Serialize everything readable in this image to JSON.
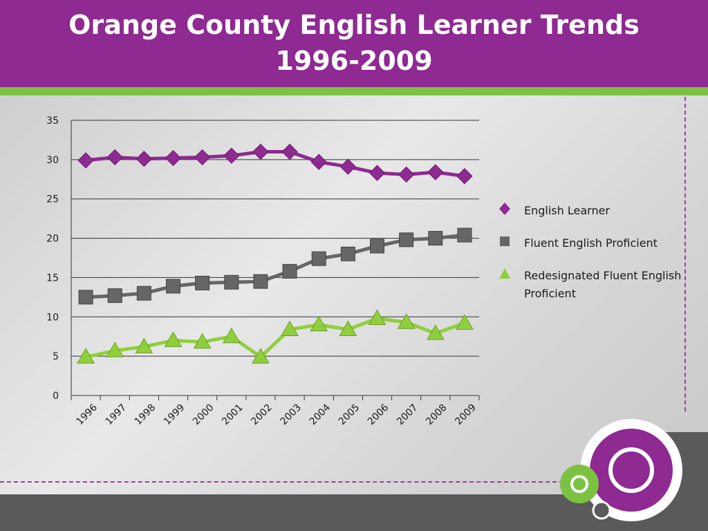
{
  "header": {
    "title": "Orange County English Learner Trends\n1996-2009"
  },
  "colors": {
    "header_bg": "#8e2a91",
    "accent_green": "#7cc242",
    "footer": "#5a5a5a",
    "series_english_learner": "#8e2a91",
    "series_fluent": "#666666",
    "series_redesignated": "#8fcf3c"
  },
  "chart_data": {
    "type": "line",
    "title": "Orange County English Learner Trends 1996-2009",
    "xlabel": "",
    "ylabel": "",
    "categories": [
      "1996",
      "1997",
      "1998",
      "1999",
      "2000",
      "2001",
      "2002",
      "2003",
      "2004",
      "2005",
      "2006",
      "2007",
      "2008",
      "2009"
    ],
    "y_ticks": [
      "0",
      "5",
      "10",
      "15",
      "20",
      "25",
      "30",
      "35"
    ],
    "ylim": [
      0,
      35
    ],
    "grid": "horizontal",
    "legend_position": "right",
    "series": [
      {
        "name": "English Learner",
        "marker": "diamond",
        "values": [
          29.9,
          30.3,
          30.1,
          30.2,
          30.3,
          30.5,
          31.0,
          31.0,
          29.7,
          29.1,
          28.3,
          28.1,
          28.4,
          27.9
        ]
      },
      {
        "name": "Fluent English Proficient",
        "marker": "square",
        "values": [
          12.5,
          12.7,
          13.0,
          13.9,
          14.3,
          14.4,
          14.5,
          15.8,
          17.4,
          18.0,
          19.0,
          19.8,
          20.0,
          20.4
        ]
      },
      {
        "name": "Redesignated Fluent English Proficient",
        "marker": "triangle",
        "values": [
          4.9,
          5.7,
          6.2,
          7.0,
          6.8,
          7.5,
          4.9,
          8.4,
          9.0,
          8.4,
          9.8,
          9.3,
          7.9,
          9.2
        ]
      }
    ]
  }
}
